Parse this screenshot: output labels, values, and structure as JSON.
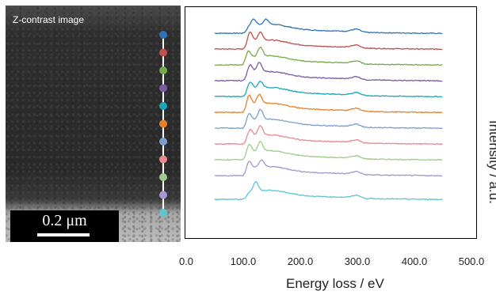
{
  "image_panel": {
    "title": "Z-contrast image",
    "scale_label": "0.2 μm"
  },
  "chart_data": {
    "type": "line",
    "title": "",
    "xlabel": "Energy loss / eV",
    "ylabel": "Intensity / a.u.",
    "xlim": [
      0,
      500
    ],
    "x_ticks": [
      "0.0",
      "100.0",
      "200.0",
      "300.0",
      "400.0",
      "500.0"
    ],
    "x_tick_values": [
      0,
      100,
      200,
      300,
      400,
      500
    ],
    "grid": false,
    "legend": "none",
    "x_start": 50,
    "x_end": 450,
    "series": [
      {
        "color": "#2e74b5",
        "baseline": 1.0,
        "peaks": [
          {
            "x": 118,
            "h": 0.35
          },
          {
            "x": 140,
            "h": 0.28
          }
        ],
        "edge": 290
      },
      {
        "color": "#c0504d",
        "baseline": 0.92,
        "peaks": [
          {
            "x": 112,
            "h": 0.55
          },
          {
            "x": 130,
            "h": 0.48
          }
        ],
        "edge": 290
      },
      {
        "color": "#77a94a",
        "baseline": 0.84,
        "peaks": [
          {
            "x": 108,
            "h": 0.45
          },
          {
            "x": 130,
            "h": 0.52
          }
        ],
        "edge": 290
      },
      {
        "color": "#7b5aa6",
        "baseline": 0.76,
        "peaks": [
          {
            "x": 112,
            "h": 0.5
          },
          {
            "x": 128,
            "h": 0.56
          }
        ],
        "edge": 290
      },
      {
        "color": "#1aa6b7",
        "baseline": 0.68,
        "peaks": [
          {
            "x": 112,
            "h": 0.42
          },
          {
            "x": 130,
            "h": 0.38
          }
        ],
        "edge": 290
      },
      {
        "color": "#e8802a",
        "baseline": 0.6,
        "peaks": [
          {
            "x": 110,
            "h": 0.6
          },
          {
            "x": 128,
            "h": 0.55
          }
        ],
        "edge": 290
      },
      {
        "color": "#7a9fcf",
        "baseline": 0.52,
        "peaks": [
          {
            "x": 110,
            "h": 0.45
          },
          {
            "x": 130,
            "h": 0.58
          }
        ],
        "edge": 290
      },
      {
        "color": "#e7898f",
        "baseline": 0.44,
        "peaks": [
          {
            "x": 112,
            "h": 0.4
          },
          {
            "x": 130,
            "h": 0.55
          }
        ],
        "edge": 290
      },
      {
        "color": "#9fcb8b",
        "baseline": 0.36,
        "peaks": [
          {
            "x": 110,
            "h": 0.5
          },
          {
            "x": 130,
            "h": 0.55
          }
        ],
        "edge": 290
      },
      {
        "color": "#a596cf",
        "baseline": 0.28,
        "peaks": [
          {
            "x": 110,
            "h": 0.42
          },
          {
            "x": 132,
            "h": 0.4
          }
        ],
        "edge": 290
      },
      {
        "color": "#5fc4d4",
        "baseline": 0.16,
        "peaks": [
          {
            "x": 122,
            "h": 0.55
          }
        ],
        "edge": 290
      }
    ]
  }
}
